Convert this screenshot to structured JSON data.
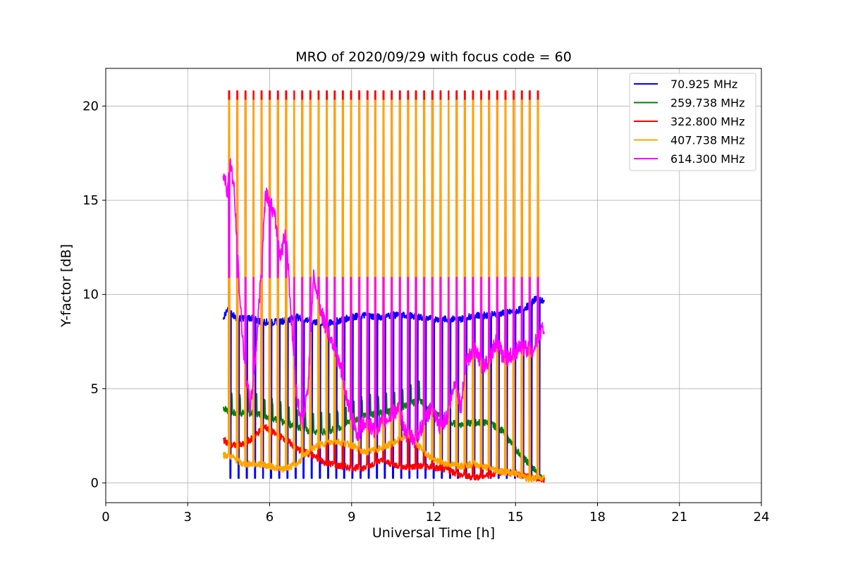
{
  "chart_data": {
    "type": "line",
    "title": "MRO of 2020/09/29 with focus code = 60",
    "xlabel": "Universal Time [h]",
    "ylabel": "Y-factor [dB]",
    "xlim": [
      0,
      24
    ],
    "ylim": [
      -1.05,
      22.0
    ],
    "xticks": [
      0,
      3,
      6,
      9,
      12,
      15,
      18,
      21,
      24
    ],
    "yticks": [
      0,
      5,
      10,
      15,
      20
    ],
    "grid": true,
    "legend_position": "top-right",
    "series": [
      {
        "name": "70.925 MHz",
        "color": "#0000ff",
        "baseline": [
          [
            4.3,
            8.8
          ],
          [
            4.5,
            9.2
          ],
          [
            4.8,
            8.7
          ],
          [
            5.2,
            8.8
          ],
          [
            5.6,
            8.6
          ],
          [
            6.0,
            8.5
          ],
          [
            6.5,
            8.6
          ],
          [
            7.0,
            8.8
          ],
          [
            7.5,
            8.6
          ],
          [
            8.0,
            8.4
          ],
          [
            8.5,
            8.6
          ],
          [
            9.0,
            8.8
          ],
          [
            9.5,
            8.9
          ],
          [
            10.0,
            8.8
          ],
          [
            10.5,
            8.9
          ],
          [
            11.0,
            8.9
          ],
          [
            11.5,
            8.8
          ],
          [
            12.0,
            8.7
          ],
          [
            12.5,
            8.7
          ],
          [
            13.0,
            8.7
          ],
          [
            13.5,
            8.9
          ],
          [
            14.0,
            8.9
          ],
          [
            14.5,
            9.0
          ],
          [
            15.0,
            9.1
          ],
          [
            15.5,
            9.4
          ],
          [
            15.8,
            9.9
          ],
          [
            16.0,
            9.6
          ]
        ],
        "dip_level": 0.25,
        "dip_start": 4.55,
        "dip_end": 15.9
      },
      {
        "name": "259.738 MHz",
        "color": "#008000",
        "baseline": [
          [
            4.3,
            4.0
          ],
          [
            4.6,
            3.7
          ],
          [
            5.0,
            3.7
          ],
          [
            5.5,
            3.7
          ],
          [
            6.0,
            3.5
          ],
          [
            6.5,
            3.2
          ],
          [
            7.0,
            3.0
          ],
          [
            7.5,
            2.7
          ],
          [
            8.0,
            2.7
          ],
          [
            8.5,
            2.9
          ],
          [
            9.0,
            3.3
          ],
          [
            9.5,
            3.6
          ],
          [
            10.0,
            3.7
          ],
          [
            10.5,
            3.8
          ],
          [
            11.0,
            4.1
          ],
          [
            11.5,
            4.4
          ],
          [
            12.0,
            3.8
          ],
          [
            12.5,
            3.2
          ],
          [
            13.0,
            3.1
          ],
          [
            13.5,
            3.2
          ],
          [
            14.0,
            3.2
          ],
          [
            14.5,
            2.8
          ],
          [
            15.0,
            1.8
          ],
          [
            15.5,
            1.0
          ],
          [
            16.0,
            0.2
          ]
        ],
        "peak_start": 4.6,
        "peak_end": 11.6,
        "peak_level": 4.9,
        "dip_level": 1.0
      },
      {
        "name": "322.800 MHz",
        "color": "#ff0000",
        "baseline": [
          [
            4.3,
            2.3
          ],
          [
            4.6,
            2.0
          ],
          [
            5.0,
            2.0
          ],
          [
            5.4,
            2.4
          ],
          [
            5.8,
            3.0
          ],
          [
            6.2,
            2.6
          ],
          [
            6.6,
            2.3
          ],
          [
            7.0,
            1.8
          ],
          [
            7.5,
            1.5
          ],
          [
            8.0,
            1.1
          ],
          [
            8.5,
            0.9
          ],
          [
            9.0,
            0.8
          ],
          [
            9.5,
            0.8
          ],
          [
            10.0,
            1.2
          ],
          [
            10.5,
            1.0
          ],
          [
            11.0,
            0.8
          ],
          [
            11.5,
            0.9
          ],
          [
            12.0,
            0.8
          ],
          [
            12.5,
            0.7
          ],
          [
            13.0,
            0.4
          ],
          [
            13.5,
            0.3
          ],
          [
            14.0,
            0.4
          ],
          [
            14.5,
            0.6
          ],
          [
            15.0,
            0.5
          ],
          [
            15.5,
            0.3
          ],
          [
            16.0,
            0.2
          ]
        ],
        "peak_level": 20.8,
        "peak_start": 4.5,
        "peak_end": 16.0
      },
      {
        "name": "407.738 MHz",
        "color": "#ffa500",
        "baseline": [
          [
            4.3,
            1.5
          ],
          [
            4.6,
            1.4
          ],
          [
            5.0,
            1.0
          ],
          [
            5.5,
            1.0
          ],
          [
            6.0,
            0.9
          ],
          [
            6.5,
            0.7
          ],
          [
            7.0,
            1.0
          ],
          [
            7.5,
            1.8
          ],
          [
            8.0,
            2.1
          ],
          [
            8.5,
            2.2
          ],
          [
            9.0,
            2.0
          ],
          [
            9.5,
            1.6
          ],
          [
            10.0,
            1.8
          ],
          [
            10.5,
            2.1
          ],
          [
            11.0,
            2.5
          ],
          [
            11.5,
            1.9
          ],
          [
            12.0,
            1.2
          ],
          [
            12.5,
            1.0
          ],
          [
            13.0,
            0.9
          ],
          [
            13.5,
            1.0
          ],
          [
            14.0,
            0.8
          ],
          [
            14.5,
            0.6
          ],
          [
            15.0,
            0.5
          ],
          [
            15.5,
            0.2
          ],
          [
            16.0,
            0.3
          ]
        ],
        "peak_level": 20.3,
        "peak_start": 4.5,
        "peak_end": 16.0
      },
      {
        "name": "614.300 MHz",
        "color": "#ff00ff",
        "baseline": [
          [
            4.3,
            16.5
          ],
          [
            4.45,
            15.5
          ],
          [
            4.55,
            17.3
          ],
          [
            4.7,
            15.5
          ],
          [
            4.9,
            10.0
          ],
          [
            5.1,
            6.0
          ],
          [
            5.3,
            4.0
          ],
          [
            5.5,
            7.0
          ],
          [
            5.7,
            11.5
          ],
          [
            5.85,
            15.5
          ],
          [
            6.0,
            15.0
          ],
          [
            6.2,
            14.0
          ],
          [
            6.4,
            12.0
          ],
          [
            6.6,
            13.5
          ],
          [
            6.8,
            8.5
          ],
          [
            7.0,
            4.5
          ],
          [
            7.2,
            3.0
          ],
          [
            7.4,
            5.0
          ],
          [
            7.6,
            11.0
          ],
          [
            7.8,
            9.5
          ],
          [
            8.0,
            8.5
          ],
          [
            8.3,
            7.5
          ],
          [
            8.6,
            6.0
          ],
          [
            8.9,
            4.0
          ],
          [
            9.2,
            2.5
          ],
          [
            9.5,
            3.3
          ],
          [
            9.8,
            2.8
          ],
          [
            10.1,
            3.2
          ],
          [
            10.4,
            3.5
          ],
          [
            10.7,
            4.0
          ],
          [
            11.0,
            2.6
          ],
          [
            11.3,
            2.3
          ],
          [
            11.6,
            3.0
          ],
          [
            11.9,
            4.0
          ],
          [
            12.2,
            3.0
          ],
          [
            12.5,
            3.5
          ],
          [
            12.8,
            5.5
          ],
          [
            13.0,
            4.0
          ],
          [
            13.2,
            6.5
          ],
          [
            13.5,
            7.0
          ],
          [
            13.8,
            6.2
          ],
          [
            14.0,
            6.5
          ],
          [
            14.3,
            7.5
          ],
          [
            14.6,
            6.5
          ],
          [
            15.0,
            7.0
          ],
          [
            15.3,
            7.2
          ],
          [
            15.6,
            7.0
          ],
          [
            15.9,
            8.0
          ],
          [
            16.0,
            8.2
          ]
        ],
        "peak_level": 10.9,
        "peak_start": 4.5,
        "peak_end": 16.0
      }
    ],
    "pulse_period": 0.2975
  }
}
